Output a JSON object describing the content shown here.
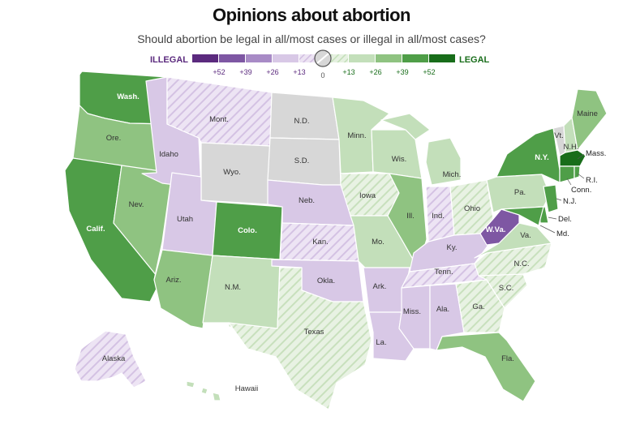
{
  "header": {
    "title": "Opinions about abortion",
    "subtitle": "Should abortion be legal in all/most cases or illegal in all/most cases?"
  },
  "legend": {
    "illegal_label": "ILLEGAL",
    "legal_label": "LEGAL",
    "neutral_tick": "0",
    "illegal_ticks": [
      "+52",
      "+39",
      "+26",
      "+13"
    ],
    "legal_ticks": [
      "+13",
      "+26",
      "+39",
      "+52"
    ],
    "illegal_colors": [
      "#5b2a7e",
      "#7e57a3",
      "#a88bc6",
      "#d8c8e6"
    ],
    "legal_colors": [
      "#c3dfba",
      "#8fc381",
      "#4f9e48",
      "#186d1a"
    ],
    "neutral_color": "#d7d7d7"
  },
  "states": {
    "wa": "Wash.",
    "or": "Ore.",
    "ca": "Calif.",
    "nv": "Nev.",
    "id": "Idaho",
    "mt": "Mont.",
    "wy": "Wyo.",
    "ut": "Utah",
    "az": "Ariz.",
    "co": "Colo.",
    "nm": "N.M.",
    "nd": "N.D.",
    "sd": "S.D.",
    "ne": "Neb.",
    "ks": "Kan.",
    "ok": "Okla.",
    "tx": "Texas",
    "mn": "Minn.",
    "ia": "Iowa",
    "mo": "Mo.",
    "ar": "Ark.",
    "la": "La.",
    "wi": "Wis.",
    "il": "Ill.",
    "mi": "Mich.",
    "in": "Ind.",
    "oh": "Ohio",
    "ky": "Ky.",
    "tn": "Tenn.",
    "ms": "Miss.",
    "al": "Ala.",
    "ga": "Ga.",
    "fl": "Fla.",
    "sc": "S.C.",
    "nc": "N.C.",
    "va": "Va.",
    "wv": "W.Va.",
    "pa": "Pa.",
    "ny": "N.Y.",
    "vt": "Vt.",
    "nh": "N.H.",
    "me": "Maine",
    "ma": "Mass.",
    "ri": "R.I.",
    "ct": "Conn.",
    "nj": "N.J.",
    "de": "Del.",
    "md": "Md.",
    "ak": "Alaska",
    "hi": "Hawaii"
  }
}
